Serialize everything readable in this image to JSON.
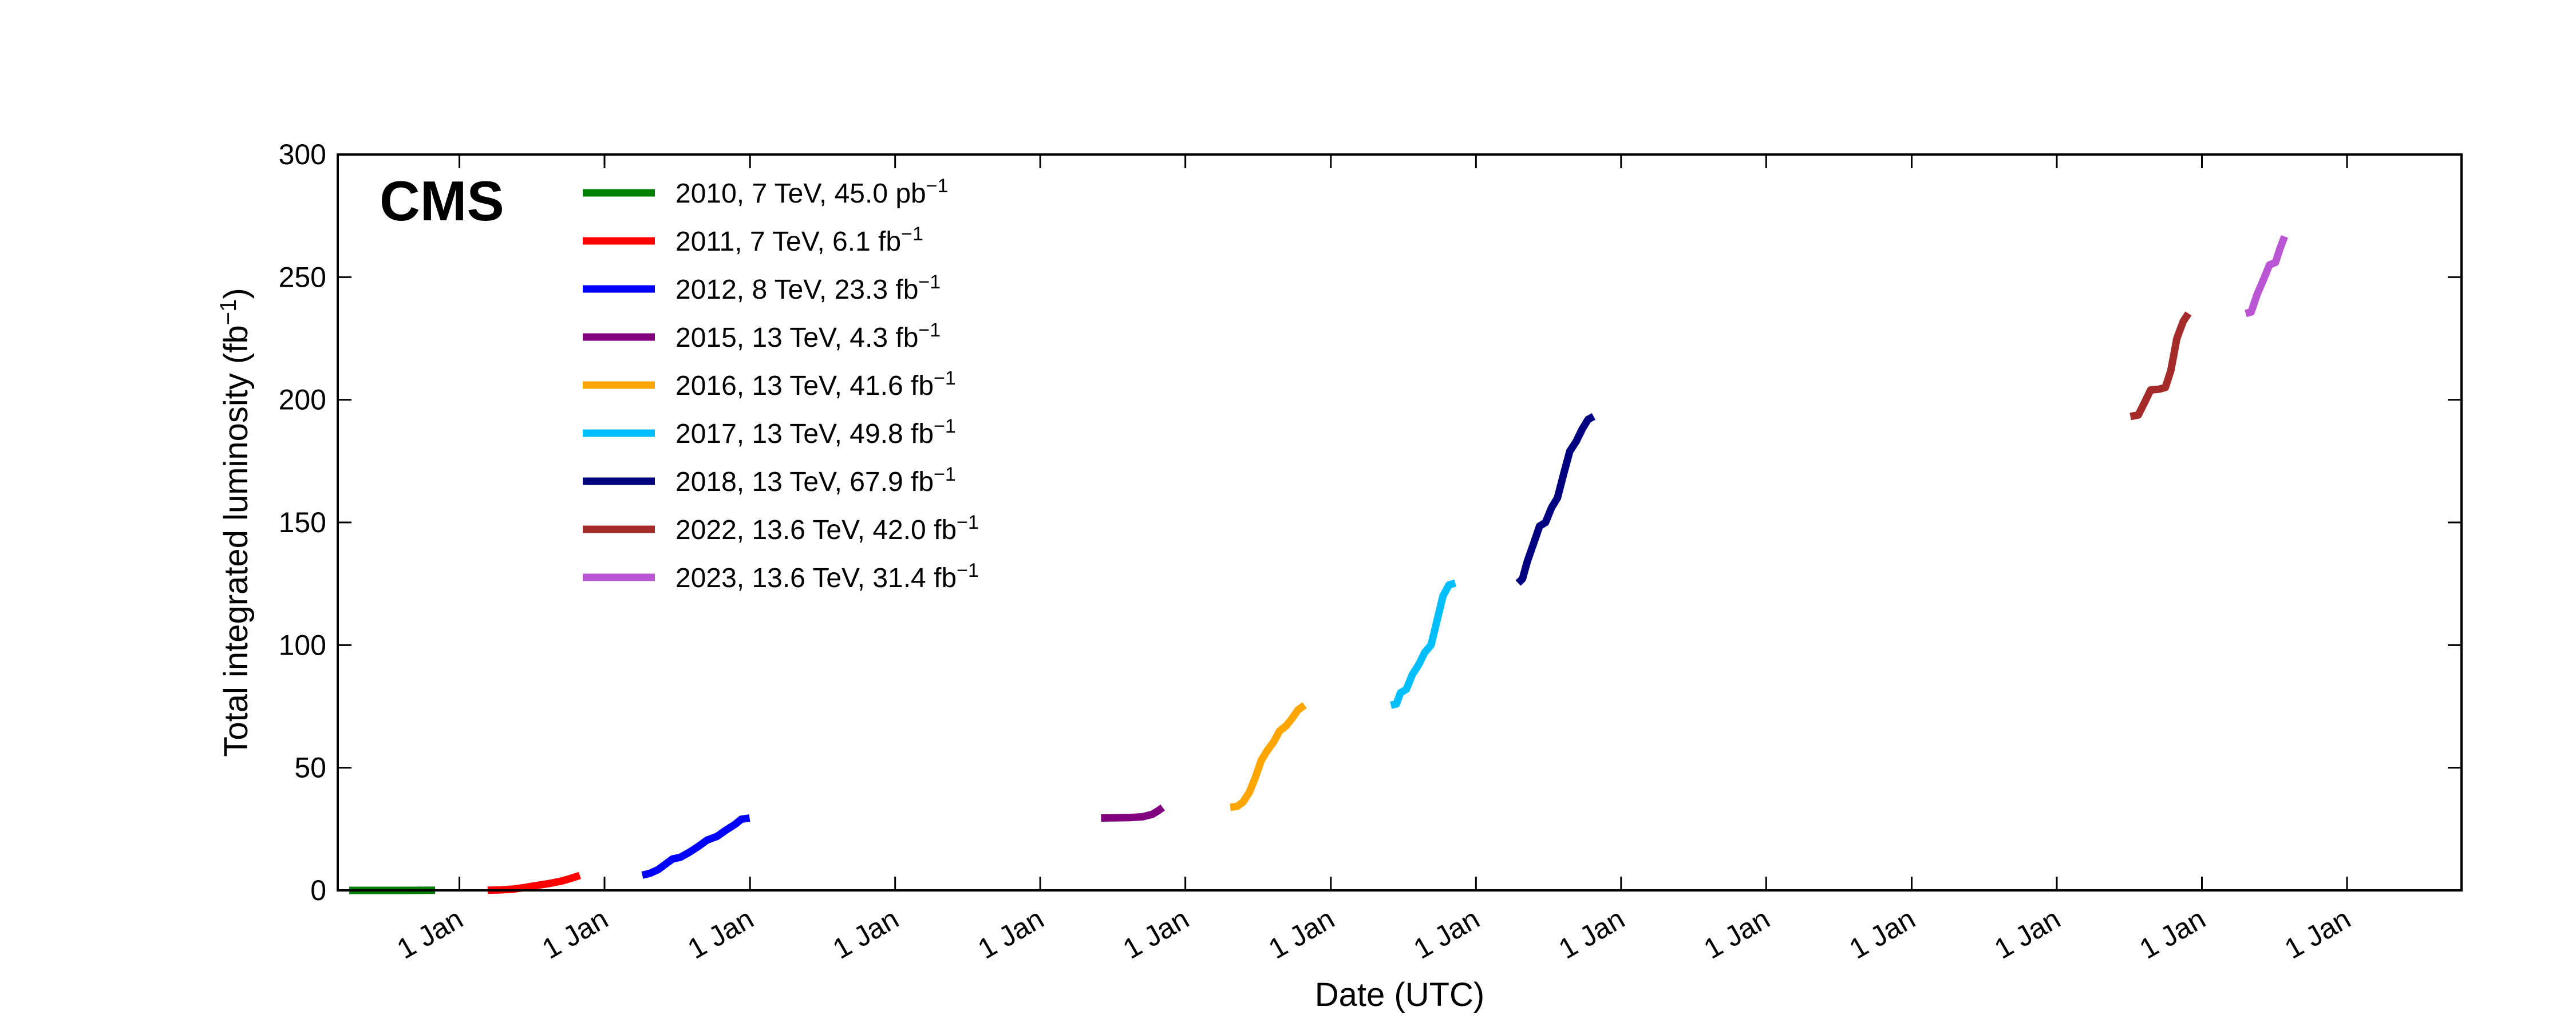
{
  "chart_data": {
    "type": "line",
    "title": "",
    "brand_label": "CMS",
    "xlabel": "Date (UTC)",
    "ylabel": "Total integrated luminosity (fb",
    "ylabel_sup": "−1",
    "ylabel_close": ")",
    "ylim": [
      0,
      300
    ],
    "xlim": [
      "2010-03-01",
      "2024-10-15"
    ],
    "yticks": [
      0,
      50,
      100,
      150,
      200,
      250,
      300
    ],
    "xticks": [
      {
        "date": "2011-01-01",
        "label": "1 Jan"
      },
      {
        "date": "2012-01-01",
        "label": "1 Jan"
      },
      {
        "date": "2013-01-01",
        "label": "1 Jan"
      },
      {
        "date": "2014-01-01",
        "label": "1 Jan"
      },
      {
        "date": "2015-01-01",
        "label": "1 Jan"
      },
      {
        "date": "2016-01-01",
        "label": "1 Jan"
      },
      {
        "date": "2017-01-01",
        "label": "1 Jan"
      },
      {
        "date": "2018-01-01",
        "label": "1 Jan"
      },
      {
        "date": "2019-01-01",
        "label": "1 Jan"
      },
      {
        "date": "2020-01-01",
        "label": "1 Jan"
      },
      {
        "date": "2021-01-01",
        "label": "1 Jan"
      },
      {
        "date": "2022-01-01",
        "label": "1 Jan"
      },
      {
        "date": "2023-01-01",
        "label": "1 Jan"
      },
      {
        "date": "2024-01-01",
        "label": "1 Jan"
      }
    ],
    "grid": false,
    "legend_position": "top-left",
    "series": [
      {
        "name": "2010, 7 TeV, 45.0 pb",
        "name_sup": "−1",
        "color": "#008000",
        "points": [
          [
            "2010-03-30",
            0
          ],
          [
            "2010-06-01",
            0.01
          ],
          [
            "2010-08-15",
            0.005
          ],
          [
            "2010-10-01",
            0.03
          ],
          [
            "2010-11-01",
            0.045
          ]
        ]
      },
      {
        "name": "2011, 7 TeV, 6.1 fb",
        "name_sup": "−1",
        "color": "#ff0000",
        "points": [
          [
            "2011-03-13",
            0.05
          ],
          [
            "2011-04-15",
            0.2
          ],
          [
            "2011-05-15",
            0.5
          ],
          [
            "2011-06-15",
            1.2
          ],
          [
            "2011-07-15",
            2.0
          ],
          [
            "2011-08-15",
            2.8
          ],
          [
            "2011-09-15",
            3.8
          ],
          [
            "2011-10-10",
            5.0
          ],
          [
            "2011-10-31",
            6.1
          ]
        ]
      },
      {
        "name": "2012, 8 TeV, 23.3 fb",
        "name_sup": "−1",
        "color": "#0000ff",
        "points": [
          [
            "2012-04-05",
            6.2
          ],
          [
            "2012-04-25",
            7.0
          ],
          [
            "2012-05-15",
            8.5
          ],
          [
            "2012-06-05",
            11.0
          ],
          [
            "2012-06-20",
            12.8
          ],
          [
            "2012-07-10",
            13.5
          ],
          [
            "2012-08-01",
            15.5
          ],
          [
            "2012-08-25",
            18.0
          ],
          [
            "2012-09-15",
            20.5
          ],
          [
            "2012-10-10",
            22.0
          ],
          [
            "2012-11-01",
            24.5
          ],
          [
            "2012-11-25",
            27.0
          ],
          [
            "2012-12-10",
            29.0
          ],
          [
            "2012-12-31",
            29.5
          ]
        ]
      },
      {
        "name": "2015, 13 TeV, 4.3 fb",
        "name_sup": "−1",
        "color": "#800080",
        "points": [
          [
            "2015-06-03",
            29.5
          ],
          [
            "2015-07-15",
            29.6
          ],
          [
            "2015-08-15",
            29.7
          ],
          [
            "2015-09-15",
            30.0
          ],
          [
            "2015-10-10",
            31.0
          ],
          [
            "2015-10-25",
            32.5
          ],
          [
            "2015-11-05",
            33.8
          ]
        ]
      },
      {
        "name": "2016, 13 TeV, 41.6 fb",
        "name_sup": "−1",
        "color": "#ffa500",
        "points": [
          [
            "2016-04-23",
            33.9
          ],
          [
            "2016-05-10",
            34.2
          ],
          [
            "2016-05-25",
            36.0
          ],
          [
            "2016-06-10",
            40.0
          ],
          [
            "2016-06-25",
            46.0
          ],
          [
            "2016-07-10",
            53.0
          ],
          [
            "2016-07-25",
            57.0
          ],
          [
            "2016-08-10",
            60.5
          ],
          [
            "2016-08-25",
            65.0
          ],
          [
            "2016-09-10",
            67.0
          ],
          [
            "2016-09-25",
            70.0
          ],
          [
            "2016-10-10",
            73.5
          ],
          [
            "2016-10-27",
            75.5
          ]
        ]
      },
      {
        "name": "2017, 13 TeV, 49.8 fb",
        "name_sup": "−1",
        "color": "#00bfff",
        "points": [
          [
            "2017-06-01",
            75.5
          ],
          [
            "2017-06-15",
            76.0
          ],
          [
            "2017-06-25",
            80.5
          ],
          [
            "2017-07-10",
            82.0
          ],
          [
            "2017-07-25",
            88.0
          ],
          [
            "2017-08-10",
            92.0
          ],
          [
            "2017-08-25",
            97.0
          ],
          [
            "2017-09-10",
            100.0
          ],
          [
            "2017-09-25",
            110.0
          ],
          [
            "2017-10-10",
            120.0
          ],
          [
            "2017-10-25",
            124.5
          ],
          [
            "2017-11-10",
            125.3
          ]
        ]
      },
      {
        "name": "2018, 13 TeV, 67.9 fb",
        "name_sup": "−1",
        "color": "#000080",
        "points": [
          [
            "2018-04-17",
            125.3
          ],
          [
            "2018-04-28",
            127.0
          ],
          [
            "2018-05-10",
            134.0
          ],
          [
            "2018-05-25",
            141.0
          ],
          [
            "2018-06-10",
            148.5
          ],
          [
            "2018-06-25",
            150.0
          ],
          [
            "2018-07-10",
            156.0
          ],
          [
            "2018-07-25",
            160.0
          ],
          [
            "2018-08-10",
            170.0
          ],
          [
            "2018-08-25",
            179.0
          ],
          [
            "2018-09-10",
            183.0
          ],
          [
            "2018-09-25",
            188.0
          ],
          [
            "2018-10-10",
            192.0
          ],
          [
            "2018-10-24",
            193.2
          ]
        ]
      },
      {
        "name": "2022, 13.6 TeV, 42.0 fb",
        "name_sup": "−1",
        "color": "#a52a2a",
        "points": [
          [
            "2022-07-05",
            193.2
          ],
          [
            "2022-07-25",
            193.8
          ],
          [
            "2022-08-10",
            199.0
          ],
          [
            "2022-08-25",
            204.0
          ],
          [
            "2022-09-15",
            204.3
          ],
          [
            "2022-10-01",
            205.0
          ],
          [
            "2022-10-15",
            212.0
          ],
          [
            "2022-10-30",
            225.0
          ],
          [
            "2022-11-15",
            232.0
          ],
          [
            "2022-11-28",
            235.2
          ]
        ]
      },
      {
        "name": "2023, 13.6 TeV, 31.4 fb",
        "name_sup": "−1",
        "color": "#ba55d3",
        "points": [
          [
            "2023-04-21",
            235.2
          ],
          [
            "2023-05-05",
            235.8
          ],
          [
            "2023-05-20",
            243.0
          ],
          [
            "2023-06-05",
            249.0
          ],
          [
            "2023-06-20",
            255.0
          ],
          [
            "2023-07-05",
            256.0
          ],
          [
            "2023-07-15",
            261.0
          ],
          [
            "2023-07-28",
            266.6
          ]
        ]
      }
    ]
  }
}
